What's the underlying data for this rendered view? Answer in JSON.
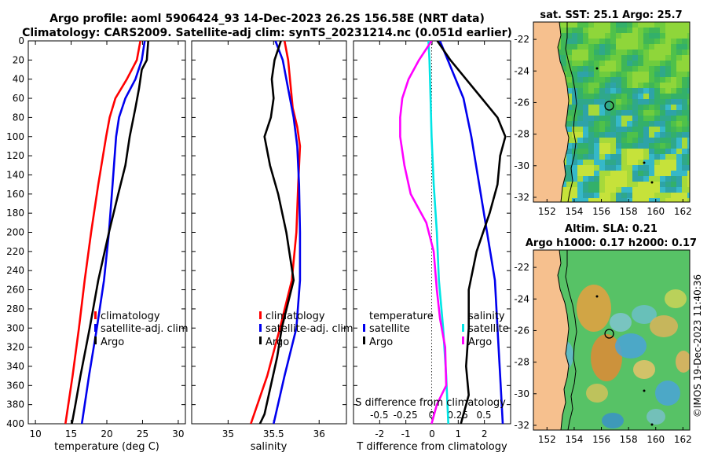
{
  "title_line1": "Argo profile: aoml 5906424_93 14-Dec-2023 26.2S 156.58E (NRT data)",
  "title_line2": "Climatology: CARS2009. Satellite-adj clim: synTS_20231214.nc (0.051d earlier)",
  "credit": "©IMOS 19-Dec-2023 11:40:36",
  "colors": {
    "climatology": "#ff0000",
    "satellite": "#0000ee",
    "argo": "#000000",
    "salinity_diff": "#00e5e5",
    "temperature_diff": "#ff00ff",
    "land": "#f6c08e"
  },
  "chart_data": [
    {
      "type": "line",
      "title": "",
      "xlabel": "temperature (deg C)",
      "ylabel": "",
      "xlim": [
        9,
        31
      ],
      "ylim": [
        400,
        0
      ],
      "x_ticks": [
        "10",
        "15",
        "20",
        "25",
        "30"
      ],
      "x_tick_values": [
        10,
        15,
        20,
        25,
        30
      ],
      "y_ticks": [
        "0",
        "20",
        "40",
        "60",
        "80",
        "100",
        "120",
        "140",
        "160",
        "180",
        "200",
        "220",
        "240",
        "260",
        "280",
        "300",
        "320",
        "340",
        "360",
        "380",
        "400"
      ],
      "y_tick_values": [
        0,
        20,
        40,
        60,
        80,
        100,
        120,
        140,
        160,
        180,
        200,
        220,
        240,
        260,
        280,
        300,
        320,
        340,
        360,
        380,
        400
      ],
      "legend": [
        "climatology",
        "satellite-adj. clim",
        "Argo"
      ],
      "series": [
        {
          "name": "climatology",
          "depth": [
            0,
            20,
            40,
            60,
            80,
            100,
            150,
            200,
            250,
            300,
            350,
            400
          ],
          "values": [
            24.7,
            24.2,
            22.8,
            21.2,
            20.4,
            19.9,
            18.8,
            17.8,
            16.9,
            16.1,
            15.2,
            14.2
          ]
        },
        {
          "name": "satellite-adj. clim",
          "depth": [
            0,
            20,
            40,
            60,
            80,
            100,
            150,
            200,
            250,
            300,
            350,
            400
          ],
          "values": [
            25.3,
            24.9,
            24.0,
            22.6,
            21.7,
            21.3,
            20.8,
            20.3,
            19.6,
            18.6,
            17.5,
            16.5
          ]
        },
        {
          "name": "Argo",
          "depth": [
            0,
            20,
            30,
            50,
            70,
            100,
            130,
            160,
            200,
            250,
            300,
            350,
            380,
            400
          ],
          "values": [
            25.8,
            25.6,
            24.9,
            24.5,
            24.0,
            23.2,
            22.6,
            21.6,
            20.3,
            18.8,
            17.6,
            16.3,
            15.6,
            15.1
          ]
        }
      ]
    },
    {
      "type": "line",
      "xlabel": "salinity",
      "xlim": [
        34.6,
        36.3
      ],
      "ylim": [
        400,
        0
      ],
      "x_ticks": [
        "35",
        "35.5",
        "36"
      ],
      "x_tick_values": [
        35,
        35.5,
        36
      ],
      "legend": [
        "climatology",
        "satellite-adj. clim",
        "Argo"
      ],
      "series": [
        {
          "name": "climatology",
          "depth": [
            0,
            20,
            50,
            70,
            90,
            110,
            150,
            200,
            250,
            300,
            350,
            400
          ],
          "values": [
            35.62,
            35.66,
            35.69,
            35.71,
            35.76,
            35.79,
            35.77,
            35.75,
            35.7,
            35.57,
            35.43,
            35.25
          ]
        },
        {
          "name": "satellite-adj. clim",
          "depth": [
            0,
            20,
            50,
            80,
            110,
            150,
            200,
            250,
            300,
            350,
            400
          ],
          "values": [
            35.52,
            35.6,
            35.66,
            35.72,
            35.76,
            35.78,
            35.79,
            35.79,
            35.75,
            35.62,
            35.5
          ]
        },
        {
          "name": "Argo",
          "depth": [
            0,
            20,
            40,
            60,
            80,
            100,
            130,
            160,
            200,
            250,
            300,
            330,
            360,
            390,
            400
          ],
          "values": [
            35.58,
            35.51,
            35.48,
            35.5,
            35.47,
            35.4,
            35.46,
            35.55,
            35.64,
            35.72,
            35.59,
            35.54,
            35.47,
            35.4,
            35.35
          ]
        }
      ]
    },
    {
      "type": "line",
      "xlabel": "T difference from climatology",
      "xlim": [
        -3,
        3
      ],
      "ylim": [
        400,
        0
      ],
      "x_ticks": [
        "-2",
        "-1",
        "0",
        "1",
        "2"
      ],
      "x_tick_values": [
        -2,
        -1,
        0,
        1,
        2
      ],
      "top_axis_label": "S difference from climatology",
      "top_ticks": [
        "-0.5",
        "-0.25",
        "0",
        "0.25",
        "0.5"
      ],
      "top_tick_values": [
        -0.5,
        -0.25,
        0,
        0.25,
        0.5
      ],
      "legend_temperature": [
        "temperature",
        "satellite",
        "Argo"
      ],
      "legend_salinity": [
        "salinity",
        "satellite",
        "Argo"
      ],
      "series": [
        {
          "name": "temperature satellite",
          "depth": [
            0,
            20,
            60,
            100,
            150,
            200,
            250,
            300,
            350,
            400
          ],
          "values": [
            0.3,
            0.6,
            1.2,
            1.5,
            1.8,
            2.1,
            2.4,
            2.5,
            2.6,
            2.7
          ]
        },
        {
          "name": "temperature Argo",
          "depth": [
            0,
            20,
            40,
            60,
            80,
            100,
            120,
            150,
            180,
            220,
            260,
            300,
            340,
            370,
            400
          ],
          "values": [
            0.2,
            0.7,
            1.3,
            1.9,
            2.5,
            2.8,
            2.6,
            2.5,
            2.2,
            1.7,
            1.4,
            1.4,
            1.3,
            1.4,
            1.1
          ]
        },
        {
          "name": "salinity satellite",
          "depth": [
            0,
            20,
            60,
            100,
            150,
            200,
            250,
            300,
            350,
            400
          ],
          "values": [
            -0.03,
            -0.02,
            -0.01,
            0.0,
            0.02,
            0.05,
            0.07,
            0.11,
            0.14,
            0.16
          ]
        },
        {
          "name": "salinity Argo",
          "depth": [
            0,
            20,
            40,
            60,
            80,
            100,
            130,
            160,
            190,
            220,
            260,
            290,
            320,
            360,
            380,
            400
          ],
          "values": [
            0.0,
            -0.12,
            -0.22,
            -0.28,
            -0.3,
            -0.3,
            -0.26,
            -0.2,
            -0.05,
            0.02,
            0.05,
            0.08,
            0.13,
            0.14,
            0.05,
            0.0
          ]
        }
      ]
    },
    {
      "type": "heatmap",
      "title": "sat. SST: 25.1 Argo: 25.7",
      "xlim": [
        151,
        162.5
      ],
      "ylim": [
        -32.3,
        -20.9
      ],
      "x_ticks": [
        "152",
        "154",
        "156",
        "158",
        "160",
        "162"
      ],
      "x_tick_values": [
        152,
        154,
        156,
        158,
        160,
        162
      ],
      "y_ticks": [
        "-22",
        "-24",
        "-26",
        "-28",
        "-30",
        "-32"
      ],
      "y_tick_values": [
        -22,
        -24,
        -26,
        -28,
        -30,
        -32
      ],
      "marker": {
        "lon": 156.58,
        "lat": -26.2
      }
    },
    {
      "type": "heatmap",
      "title_line1": "Altim. SLA: 0.21",
      "title_line2": "Argo h1000: 0.17 h2000: 0.17",
      "xlim": [
        151,
        162.5
      ],
      "ylim": [
        -32.3,
        -20.9
      ],
      "x_ticks": [
        "152",
        "154",
        "156",
        "158",
        "160",
        "162"
      ],
      "x_tick_values": [
        152,
        154,
        156,
        158,
        160,
        162
      ],
      "y_ticks": [
        "-22",
        "-24",
        "-26",
        "-28",
        "-30",
        "-32"
      ],
      "y_tick_values": [
        -22,
        -24,
        -26,
        -28,
        -30,
        -32
      ],
      "marker": {
        "lon": 156.58,
        "lat": -26.2
      }
    }
  ]
}
